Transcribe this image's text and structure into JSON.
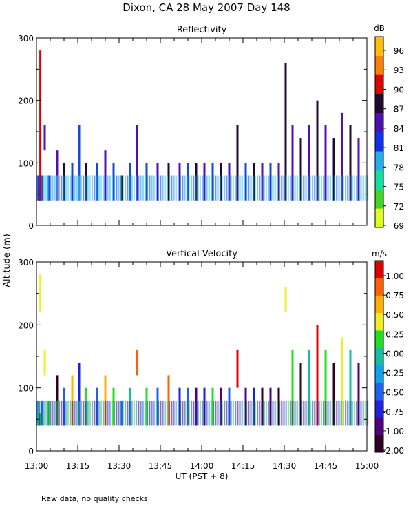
{
  "page": {
    "title": "Dixon, CA 28 May 2007  Day 148",
    "ylabel": "Altitude (m)",
    "xlabel": "UT  (PST + 8)",
    "footnote": "Raw data, no quality checks"
  },
  "colors": {
    "axis": "#000000",
    "background": "#ffffff"
  },
  "chart_data": [
    {
      "type": "heatmap",
      "name": "reflectivity",
      "title": "Reflectivity",
      "colorbar_unit": "dB",
      "colorbar_ticks": [
        "96",
        "93",
        "90",
        "87",
        "84",
        "81",
        "78",
        "75",
        "72",
        "69"
      ],
      "colorbar_colors": [
        "#e0ff20",
        "#40d820",
        "#10e0a0",
        "#20b0f0",
        "#1030f0",
        "#5010b0",
        "#200a30",
        "#e00000",
        "#ff8000",
        "#ffc000"
      ],
      "x_ticks": [
        "13:00",
        "13:15",
        "13:30",
        "13:45",
        "14:00",
        "14:15",
        "14:30",
        "14:45",
        "15:00"
      ],
      "y_ticks": [
        "300",
        "200",
        "100",
        "0"
      ],
      "xlim_minutes": [
        0,
        120
      ],
      "ylim": [
        0,
        300
      ],
      "echo_columns": [
        {
          "t": 0.6,
          "b": 40,
          "top": 80,
          "c": 4
        },
        {
          "t": 1.2,
          "b": 40,
          "top": 60,
          "c": 3
        },
        {
          "t": 1.4,
          "b": 40,
          "top": 280,
          "c": 7
        },
        {
          "t": 2.1,
          "b": 40,
          "top": 80,
          "c": 4
        },
        {
          "t": 3.0,
          "b": 120,
          "top": 160,
          "c": 4
        },
        {
          "t": 4.5,
          "b": 40,
          "top": 80,
          "c": 3
        },
        {
          "t": 7.5,
          "b": 40,
          "top": 120,
          "c": 4
        },
        {
          "t": 10.0,
          "b": 40,
          "top": 100,
          "c": 5
        },
        {
          "t": 13.0,
          "b": 40,
          "top": 100,
          "c": 3
        },
        {
          "t": 15.5,
          "b": 40,
          "top": 160,
          "c": 3
        },
        {
          "t": 18.0,
          "b": 40,
          "top": 100,
          "c": 5
        },
        {
          "t": 22.0,
          "b": 40,
          "top": 100,
          "c": 3
        },
        {
          "t": 25.0,
          "b": 40,
          "top": 120,
          "c": 4
        },
        {
          "t": 28.0,
          "b": 40,
          "top": 100,
          "c": 3
        },
        {
          "t": 31.0,
          "b": 40,
          "top": 80,
          "c": 5
        },
        {
          "t": 34.0,
          "b": 40,
          "top": 100,
          "c": 3
        },
        {
          "t": 36.5,
          "b": 40,
          "top": 160,
          "c": 4
        },
        {
          "t": 40.0,
          "b": 40,
          "top": 100,
          "c": 3
        },
        {
          "t": 44.0,
          "b": 40,
          "top": 100,
          "c": 4
        },
        {
          "t": 48.0,
          "b": 40,
          "top": 100,
          "c": 5
        },
        {
          "t": 52.0,
          "b": 40,
          "top": 100,
          "c": 4
        },
        {
          "t": 55.0,
          "b": 40,
          "top": 100,
          "c": 3
        },
        {
          "t": 58.0,
          "b": 40,
          "top": 100,
          "c": 5
        },
        {
          "t": 61.0,
          "b": 40,
          "top": 100,
          "c": 4
        },
        {
          "t": 64.0,
          "b": 40,
          "top": 100,
          "c": 3
        },
        {
          "t": 67.0,
          "b": 40,
          "top": 100,
          "c": 5
        },
        {
          "t": 70.0,
          "b": 40,
          "top": 100,
          "c": 4
        },
        {
          "t": 73.0,
          "b": 40,
          "top": 160,
          "c": 5
        },
        {
          "t": 76.0,
          "b": 40,
          "top": 100,
          "c": 3
        },
        {
          "t": 79.0,
          "b": 40,
          "top": 100,
          "c": 5
        },
        {
          "t": 82.0,
          "b": 40,
          "top": 100,
          "c": 4
        },
        {
          "t": 85.0,
          "b": 40,
          "top": 100,
          "c": 3
        },
        {
          "t": 88.0,
          "b": 40,
          "top": 100,
          "c": 4
        },
        {
          "t": 90.5,
          "b": 40,
          "top": 260,
          "c": 5
        },
        {
          "t": 93.0,
          "b": 40,
          "top": 160,
          "c": 4
        },
        {
          "t": 96.0,
          "b": 40,
          "top": 140,
          "c": 5
        },
        {
          "t": 99.0,
          "b": 40,
          "top": 160,
          "c": 4
        },
        {
          "t": 102.0,
          "b": 40,
          "top": 200,
          "c": 5
        },
        {
          "t": 105.0,
          "b": 40,
          "top": 160,
          "c": 4
        },
        {
          "t": 108.0,
          "b": 40,
          "top": 140,
          "c": 5
        },
        {
          "t": 111.0,
          "b": 40,
          "top": 180,
          "c": 4
        },
        {
          "t": 114.0,
          "b": 40,
          "top": 160,
          "c": 5
        },
        {
          "t": 117.0,
          "b": 40,
          "top": 140,
          "c": 4
        }
      ]
    },
    {
      "type": "heatmap",
      "name": "vertical-velocity",
      "title": "Vertical Velocity",
      "colorbar_unit": "m/s",
      "colorbar_ticks": [
        "1.00",
        "0.75",
        "0.50",
        "0.25",
        "0.00",
        "-0.25",
        "-0.50",
        "-0.75",
        "-1.00",
        "-2.00"
      ],
      "colorbar_colors": [
        "#300020",
        "#500080",
        "#2020e0",
        "#2060f0",
        "#10a0f0",
        "#10c0a0",
        "#20e020",
        "#f0f020",
        "#ffb000",
        "#ff6000",
        "#e00000"
      ],
      "x_ticks": [
        "13:00",
        "13:15",
        "13:30",
        "13:45",
        "14:00",
        "14:15",
        "14:30",
        "14:45",
        "15:00"
      ],
      "y_ticks": [
        "300",
        "200",
        "100",
        "0"
      ],
      "xlim_minutes": [
        0,
        120
      ],
      "ylim": [
        0,
        300
      ],
      "echo_columns": [
        {
          "t": 0.6,
          "b": 40,
          "top": 80,
          "c": 5
        },
        {
          "t": 1.2,
          "b": 40,
          "top": 60,
          "c": 6
        },
        {
          "t": 1.4,
          "b": 220,
          "top": 280,
          "c": 7
        },
        {
          "t": 2.1,
          "b": 40,
          "top": 80,
          "c": 4
        },
        {
          "t": 3.0,
          "b": 120,
          "top": 160,
          "c": 7
        },
        {
          "t": 4.5,
          "b": 40,
          "top": 80,
          "c": 6
        },
        {
          "t": 7.5,
          "b": 40,
          "top": 120,
          "c": 0
        },
        {
          "t": 10.0,
          "b": 40,
          "top": 100,
          "c": 3
        },
        {
          "t": 13.0,
          "b": 40,
          "top": 120,
          "c": 8
        },
        {
          "t": 15.5,
          "b": 40,
          "top": 140,
          "c": 2
        },
        {
          "t": 18.0,
          "b": 40,
          "top": 100,
          "c": 6
        },
        {
          "t": 22.0,
          "b": 40,
          "top": 100,
          "c": 3
        },
        {
          "t": 25.0,
          "b": 40,
          "top": 120,
          "c": 8
        },
        {
          "t": 28.0,
          "b": 40,
          "top": 100,
          "c": 6
        },
        {
          "t": 31.0,
          "b": 40,
          "top": 80,
          "c": 3
        },
        {
          "t": 34.0,
          "b": 40,
          "top": 100,
          "c": 5
        },
        {
          "t": 36.5,
          "b": 120,
          "top": 160,
          "c": 9
        },
        {
          "t": 40.0,
          "b": 40,
          "top": 100,
          "c": 6
        },
        {
          "t": 44.0,
          "b": 40,
          "top": 100,
          "c": 3
        },
        {
          "t": 48.0,
          "b": 40,
          "top": 120,
          "c": 9
        },
        {
          "t": 52.0,
          "b": 40,
          "top": 100,
          "c": 2
        },
        {
          "t": 55.0,
          "b": 40,
          "top": 100,
          "c": 3
        },
        {
          "t": 58.0,
          "b": 40,
          "top": 100,
          "c": 1
        },
        {
          "t": 61.0,
          "b": 40,
          "top": 100,
          "c": 2
        },
        {
          "t": 64.0,
          "b": 40,
          "top": 100,
          "c": 6
        },
        {
          "t": 67.0,
          "b": 40,
          "top": 100,
          "c": 1
        },
        {
          "t": 70.0,
          "b": 40,
          "top": 100,
          "c": 3
        },
        {
          "t": 73.0,
          "b": 100,
          "top": 160,
          "c": 10
        },
        {
          "t": 76.0,
          "b": 40,
          "top": 100,
          "c": 1
        },
        {
          "t": 79.0,
          "b": 40,
          "top": 100,
          "c": 2
        },
        {
          "t": 82.0,
          "b": 40,
          "top": 100,
          "c": 0
        },
        {
          "t": 85.0,
          "b": 40,
          "top": 100,
          "c": 1
        },
        {
          "t": 88.0,
          "b": 40,
          "top": 100,
          "c": 0
        },
        {
          "t": 90.5,
          "b": 220,
          "top": 260,
          "c": 7
        },
        {
          "t": 93.0,
          "b": 40,
          "top": 160,
          "c": 6
        },
        {
          "t": 96.0,
          "b": 40,
          "top": 140,
          "c": 0
        },
        {
          "t": 99.0,
          "b": 40,
          "top": 160,
          "c": 5
        },
        {
          "t": 102.0,
          "b": 40,
          "top": 200,
          "c": 10
        },
        {
          "t": 105.0,
          "b": 40,
          "top": 160,
          "c": 6
        },
        {
          "t": 108.0,
          "b": 40,
          "top": 140,
          "c": 0
        },
        {
          "t": 111.0,
          "b": 40,
          "top": 180,
          "c": 7
        },
        {
          "t": 114.0,
          "b": 40,
          "top": 160,
          "c": 5
        },
        {
          "t": 117.0,
          "b": 40,
          "top": 140,
          "c": 1
        }
      ]
    }
  ]
}
